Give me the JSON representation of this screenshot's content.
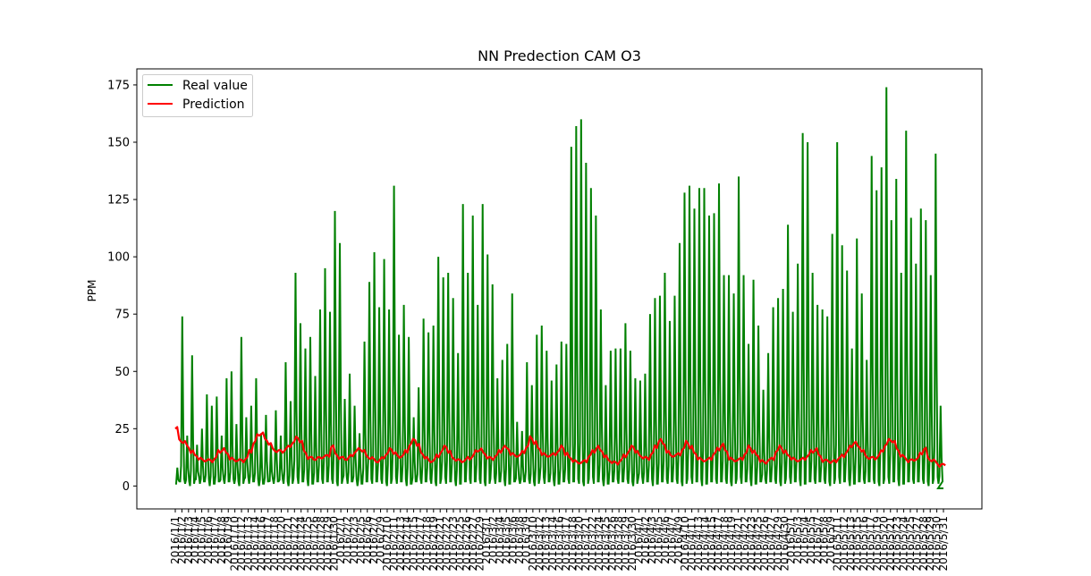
{
  "chart_data": {
    "type": "line",
    "title": "NN Predection CAM O3",
    "xlabel": "",
    "ylabel": "PPM",
    "ylim": [
      -10,
      182
    ],
    "y_ticks": [
      0,
      25,
      50,
      75,
      100,
      125,
      150,
      175
    ],
    "grid": false,
    "legend_position": "top-left",
    "legend": [
      "Real value",
      "Prediction"
    ],
    "x_dates": {
      "start": "2016/1/1",
      "end": "2016/5/31",
      "tick_labels": [
        "2016/1/1",
        "2016/1/2",
        "2016/1/3",
        "2016/1/4",
        "2016/1/5",
        "2016/1/6",
        "2016/1/7",
        "2016/1/8",
        "2016/1/9",
        "2016/1/10",
        "2016/1/12",
        "2016/1/13",
        "2016/1/14",
        "2016/1/16",
        "2016/1/17",
        "2016/1/18",
        "2016/1/20",
        "2016/1/21",
        "2016/1/22",
        "2016/1/24",
        "2016/1/25",
        "2016/1/26",
        "2016/1/28",
        "2016/1/29",
        "2016/1/30",
        "2016/2/1",
        "2016/2/2",
        "2016/2/3",
        "2016/2/5",
        "2016/2/6",
        "2016/2/7",
        "2016/2/9",
        "2016/2/10",
        "2016/2/11",
        "2016/2/13",
        "2016/2/14",
        "2016/2/15",
        "2016/2/17",
        "2016/2/18",
        "2016/2/19",
        "2016/2/21",
        "2016/2/22",
        "2016/2/23",
        "2016/2/25",
        "2016/2/26",
        "2016/2/27",
        "2016/2/29",
        "2016/3/1",
        "2016/3/2",
        "2016/3/4",
        "2016/3/5",
        "2016/3/6",
        "2016/3/8",
        "2016/3/9",
        "2016/3/10",
        "2016/3/12",
        "2016/3/13",
        "2016/3/14",
        "2016/3/16",
        "2016/3/17",
        "2016/3/18",
        "2016/3/20",
        "2016/3/21",
        "2016/3/22",
        "2016/3/24",
        "2016/3/25",
        "2016/3/26",
        "2016/3/28",
        "2016/3/29",
        "2016/3/30",
        "2016/4/1",
        "2016/4/2",
        "2016/4/3",
        "2016/4/5",
        "2016/4/6",
        "2016/4/7",
        "2016/4/9",
        "2016/4/10",
        "2016/4/11",
        "2016/4/13",
        "2016/4/14",
        "2016/4/15",
        "2016/4/17",
        "2016/4/18",
        "2016/4/19",
        "2016/4/21",
        "2016/4/22",
        "2016/4/23",
        "2016/4/25",
        "2016/4/26",
        "2016/4/27",
        "2016/4/29",
        "2016/4/30",
        "2016/5/1",
        "2016/5/3",
        "2016/5/4",
        "2016/5/5",
        "2016/5/7",
        "2016/5/8",
        "2016/5/9",
        "2016/5/11",
        "2016/5/12",
        "2016/5/13",
        "2016/5/15",
        "2016/5/16",
        "2016/5/17",
        "2016/5/19",
        "2016/5/20",
        "2016/5/21",
        "2016/5/23",
        "2016/5/24",
        "2016/5/25",
        "2016/5/27",
        "2016/5/28",
        "2016/5/29",
        "2016/5/30",
        "2016/5/31"
      ]
    },
    "series": [
      {
        "name": "Real value",
        "color": "#008000",
        "sampling": "daily peak (the real series oscillates daily between ~1 and the listed peak)",
        "daily_peak_values": [
          8,
          74,
          22,
          57,
          18,
          25,
          40,
          35,
          39,
          22,
          47,
          50,
          27,
          65,
          30,
          35,
          47,
          23,
          31,
          18,
          33,
          22,
          54,
          37,
          93,
          71,
          60,
          65,
          48,
          77,
          95,
          76,
          120,
          106,
          38,
          49,
          35,
          23,
          63,
          89,
          102,
          78,
          99,
          77,
          131,
          66,
          79,
          65,
          30,
          43,
          73,
          67,
          70,
          100,
          91,
          93,
          82,
          58,
          123,
          93,
          118,
          79,
          123,
          101,
          88,
          47,
          55,
          62,
          84,
          28,
          24,
          54,
          44,
          66,
          70,
          59,
          46,
          53,
          63,
          62,
          148,
          157,
          160,
          141,
          130,
          118,
          77,
          44,
          59,
          60,
          60,
          71,
          59,
          47,
          46,
          49,
          75,
          82,
          83,
          93,
          72,
          83,
          106,
          128,
          131,
          121,
          130,
          130,
          118,
          119,
          132,
          92,
          92,
          84,
          135,
          92,
          62,
          90,
          70,
          42,
          58,
          78,
          82,
          86,
          114,
          76,
          97,
          154,
          150,
          93,
          79,
          77,
          74,
          110,
          150,
          105,
          94,
          60,
          108,
          84,
          55,
          144,
          129,
          139,
          174,
          116,
          134,
          93,
          155,
          117,
          97,
          121,
          116,
          92,
          145,
          35
        ]
      },
      {
        "name": "Prediction",
        "color": "#ff0000",
        "sampling": "daily mean",
        "daily_values": [
          25,
          20,
          19,
          17,
          15,
          13,
          12,
          11,
          11,
          11,
          12,
          15,
          16,
          14,
          12,
          11,
          11,
          11,
          12,
          15,
          19,
          22,
          23,
          20,
          18,
          16,
          15,
          15,
          16,
          17,
          19,
          21,
          19,
          15,
          12,
          12,
          12,
          12,
          13,
          13,
          17,
          14,
          12,
          12,
          12,
          13,
          15,
          16,
          15,
          13,
          12,
          11,
          11,
          12,
          14,
          16,
          14,
          13,
          13,
          15,
          18,
          20,
          18,
          14,
          12,
          11,
          11,
          13,
          15,
          17,
          15,
          12,
          11,
          11,
          11,
          12,
          13,
          15,
          16,
          14,
          12,
          12,
          13,
          15,
          17,
          16,
          14,
          13,
          13,
          15,
          17,
          21,
          19,
          16,
          14,
          13,
          13,
          14,
          15,
          17,
          14,
          12,
          11,
          10,
          10,
          11,
          13,
          15,
          17,
          15,
          13,
          11,
          10,
          10,
          11,
          13,
          15,
          17,
          15,
          13,
          12,
          12,
          14,
          17,
          20,
          18,
          15,
          13,
          13,
          14,
          16,
          19,
          17,
          14,
          12,
          11,
          11,
          12,
          14,
          16,
          18,
          15,
          12,
          11,
          11,
          12,
          14,
          17,
          15,
          13,
          11,
          10,
          11,
          12,
          15,
          17,
          15,
          13,
          12,
          11,
          11,
          12,
          13,
          15,
          16,
          13,
          11,
          11,
          10,
          11,
          12,
          13,
          15,
          17,
          19,
          17,
          15,
          13,
          12,
          12,
          13,
          15,
          18,
          20,
          19,
          16,
          13,
          12,
          11,
          11,
          12,
          14,
          16,
          12,
          11,
          10,
          9,
          9
        ]
      }
    ]
  }
}
